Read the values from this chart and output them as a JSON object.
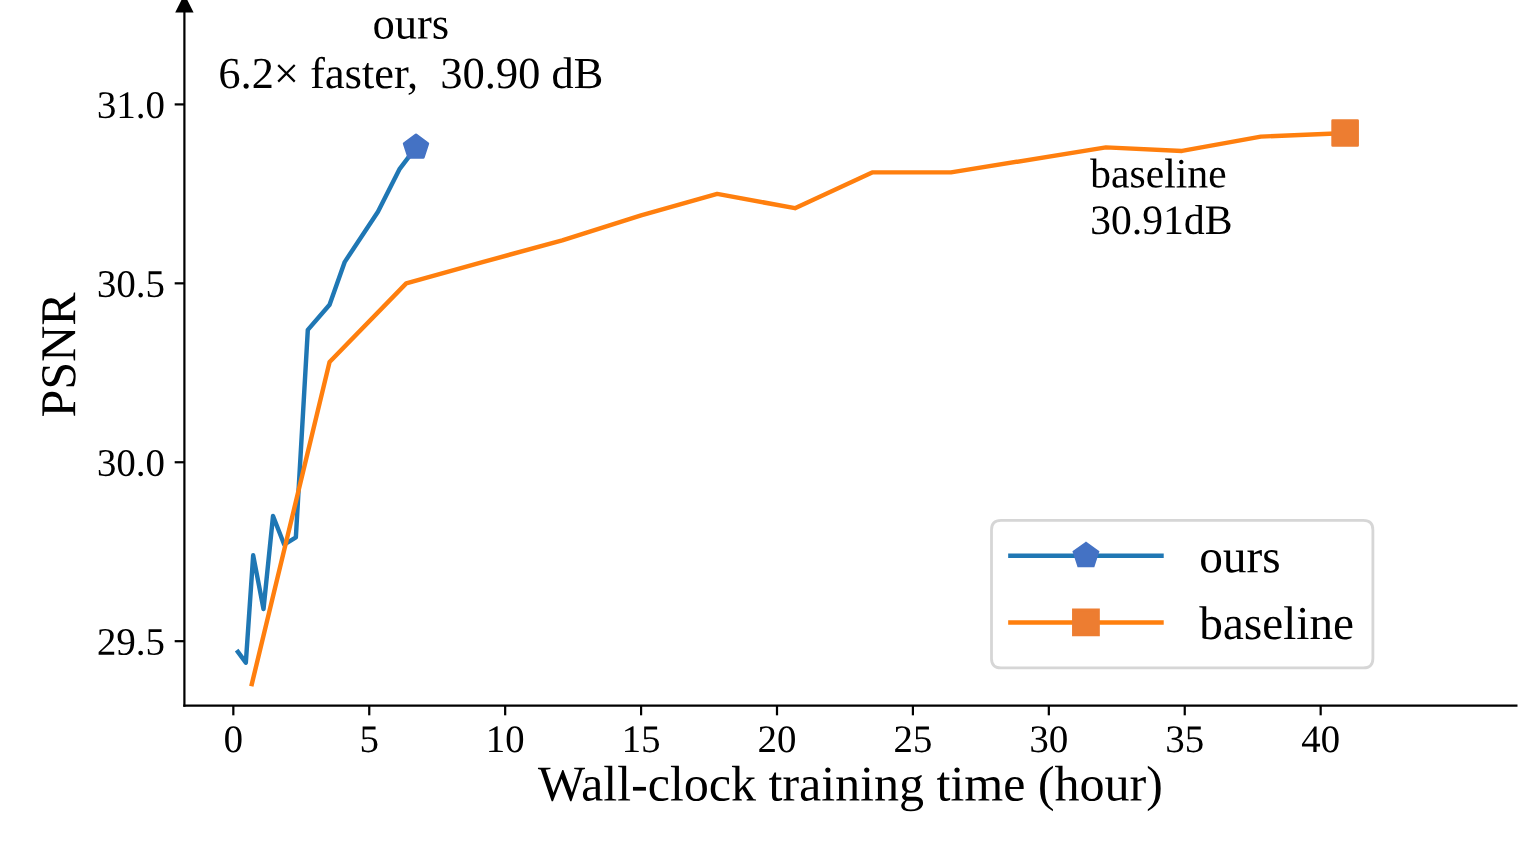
{
  "chart_data": {
    "type": "line",
    "xlabel": "Wall-clock training time (hour)",
    "ylabel": "PSNR",
    "xlim": [
      -1.8,
      47.2
    ],
    "ylim": [
      29.32,
      31.28
    ],
    "xticks": [
      0,
      5,
      10,
      15,
      20,
      25,
      30,
      35,
      40
    ],
    "yticks": [
      29.5,
      {
        "value": 30.0,
        "label": "30.0"
      },
      30.5,
      {
        "value": 31.0,
        "label": "31.0"
      }
    ],
    "grid": false,
    "legend": "bottom right",
    "series": [
      {
        "name": "ours",
        "color": "#1f77b4",
        "x": [
          0.17,
          0.46,
          0.73,
          1.11,
          1.46,
          1.87,
          2.3,
          2.74,
          3.54,
          4.1,
          5.32,
          6.12,
          6.72
        ],
        "values": [
          29.47,
          29.44,
          29.74,
          29.59,
          29.85,
          29.77,
          29.79,
          30.37,
          30.44,
          30.56,
          30.7,
          30.82,
          30.88
        ]
      },
      {
        "name": "baseline",
        "color": "#ff7f0e",
        "x": [
          0.68,
          3.54,
          6.36,
          9.2,
          12.1,
          15.0,
          17.8,
          20.66,
          23.5,
          26.4,
          32.1,
          34.9,
          37.8,
          40.9
        ],
        "values": [
          29.38,
          30.28,
          30.5,
          30.56,
          30.62,
          30.69,
          30.75,
          30.71,
          30.81,
          30.81,
          30.88,
          30.87,
          30.91,
          30.92
        ]
      },
      {
        "type": "scatter",
        "color": "#4472c4",
        "x": [
          6.72
        ],
        "values": [
          30.88
        ]
      },
      {
        "type": "scatter",
        "color": "#ed7d31",
        "x": [
          40.9
        ],
        "values": [
          30.92
        ]
      }
    ],
    "annotations": [
      "ours\n6.2× faster,  30.90 dB",
      "baseline\n30.91dB"
    ]
  }
}
